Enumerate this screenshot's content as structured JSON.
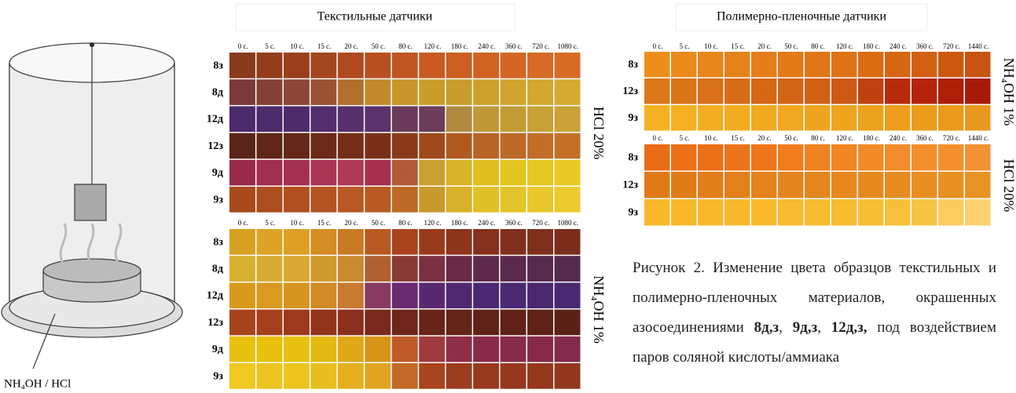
{
  "left_panel": {
    "label": "NH₄OH / HCl"
  },
  "textile": {
    "title": "Текстильные датчики",
    "panels": [
      {
        "side_label": "HCl 20%",
        "times": [
          "0 с.",
          "5 с.",
          "10 с.",
          "15 с.",
          "20 с.",
          "50 с.",
          "80 с.",
          "120 с.",
          "180 с.",
          "240 с.",
          "360 с.",
          "720 с.",
          "1080 с."
        ],
        "rows": [
          {
            "label": "8з",
            "colors": [
              "#8a3a1c",
              "#943d1c",
              "#9a3f1c",
              "#a4461e",
              "#b04a1e",
              "#b8501f",
              "#c05522",
              "#c85a22",
              "#cc5e20",
              "#d06222",
              "#d46624",
              "#d66a26",
              "#d86c26"
            ]
          },
          {
            "label": "8д",
            "colors": [
              "#7a3a3a",
              "#844036",
              "#8a4636",
              "#9a5234",
              "#b2702e",
              "#c08a2c",
              "#c8962a",
              "#cc9c2a",
              "#c89c2c",
              "#cca02c",
              "#d0a42e",
              "#d2a830",
              "#d4aa30"
            ]
          },
          {
            "label": "12д",
            "colors": [
              "#4a2a6a",
              "#4c2b6b",
              "#4e2c6c",
              "#522e6e",
              "#58306c",
              "#5c326a",
              "#6a3a5a",
              "#6a3e58",
              "#b08a40",
              "#c09838",
              "#c49c36",
              "#c8a038",
              "#caa23a"
            ]
          },
          {
            "label": "12з",
            "colors": [
              "#5a2418",
              "#602618",
              "#642818",
              "#6c2a18",
              "#742e18",
              "#7a3018",
              "#8a3a1a",
              "#a04a1c",
              "#b05a22",
              "#b86424",
              "#bc6a26",
              "#c06e28",
              "#c27028"
            ]
          },
          {
            "label": "9д",
            "colors": [
              "#9a2a4a",
              "#a02e4e",
              "#a43050",
              "#aa3654",
              "#b03a56",
              "#a8304e",
              "#b05a38",
              "#c8a030",
              "#d8b428",
              "#e0c020",
              "#e4c41e",
              "#e6c822",
              "#e8ca24"
            ]
          },
          {
            "label": "9з",
            "colors": [
              "#a84a1c",
              "#ac4e1e",
              "#b05020",
              "#b45422",
              "#b85824",
              "#b85a24",
              "#bc6a26",
              "#c89a2c",
              "#d8b02a",
              "#e0c028",
              "#e4c42a",
              "#e8c82c",
              "#eaca2e"
            ]
          }
        ]
      },
      {
        "side_label": "NH₄OH 1%",
        "times": [
          "0 с.",
          "5 с.",
          "10 с.",
          "15 с.",
          "20 с.",
          "50 с.",
          "80 с.",
          "120 с.",
          "180 с.",
          "240 с.",
          "360 с.",
          "720 с.",
          "1080 с."
        ],
        "rows": [
          {
            "label": "8з",
            "colors": [
              "#d8a020",
              "#dca424",
              "#dca024",
              "#d48c24",
              "#c87a24",
              "#b85a22",
              "#a8441e",
              "#9a3a1c",
              "#8c341c",
              "#84301c",
              "#80301c",
              "#7e301c",
              "#7c2e1c"
            ]
          },
          {
            "label": "8д",
            "colors": [
              "#d8b030",
              "#d8ac30",
              "#d8a830",
              "#d09a2e",
              "#c88a2c",
              "#b06030",
              "#8a3a36",
              "#7a3040",
              "#6a2a46",
              "#5e2a4a",
              "#5a2a4c",
              "#582a4c",
              "#562a4c"
            ]
          },
          {
            "label": "12д",
            "colors": [
              "#d89a1c",
              "#d89a20",
              "#d49620",
              "#d08a28",
              "#c87a30",
              "#8a3a60",
              "#6a2a70",
              "#5a2870",
              "#502872",
              "#4c2872",
              "#4a2872",
              "#4a2870",
              "#482870"
            ]
          },
          {
            "label": "12з",
            "colors": [
              "#a8441c",
              "#a4401c",
              "#9c3a1c",
              "#92341c",
              "#8a301c",
              "#7a2a1c",
              "#6e261c",
              "#682418",
              "#642418",
              "#602218",
              "#602218",
              "#5e2218",
              "#5c2218"
            ]
          },
          {
            "label": "9д",
            "colors": [
              "#e8c010",
              "#e8c010",
              "#e8c012",
              "#e4b814",
              "#e0a816",
              "#d89418",
              "#c05a2a",
              "#a03a40",
              "#902e48",
              "#8a2a4a",
              "#882a4a",
              "#862a4a",
              "#842a4a"
            ]
          },
          {
            "label": "9з",
            "colors": [
              "#f0c820",
              "#ecc420",
              "#ecc420",
              "#e8be20",
              "#e4b020",
              "#e0a422",
              "#c06a26",
              "#a8441e",
              "#9c3c1e",
              "#983a1e",
              "#96381e",
              "#94381e",
              "#92381e"
            ]
          }
        ]
      }
    ]
  },
  "film": {
    "title": "Полимерно-пленочные  датчики",
    "panels": [
      {
        "side_label": "NH₄OH 1%",
        "times": [
          "0 с.",
          "5 с.",
          "10 с.",
          "15 с.",
          "20 с.",
          "50 с.",
          "80 с.",
          "120 с.",
          "180 с.",
          "240 с.",
          "360 с.",
          "720 с.",
          "1440 с."
        ],
        "rows": [
          {
            "label": "8з",
            "colors": [
              "#ec8e1c",
              "#ea8a1c",
              "#e8861c",
              "#e6821a",
              "#e47e1a",
              "#e27a18",
              "#e07618",
              "#de7216",
              "#da6c14",
              "#d66612",
              "#d26012",
              "#cc5810",
              "#c85410"
            ]
          },
          {
            "label": "12з",
            "colors": [
              "#dc7818",
              "#da7418",
              "#d87018",
              "#d66c18",
              "#d46816",
              "#d26416",
              "#d06016",
              "#cc5a14",
              "#c04010",
              "#b82a0c",
              "#b4240a",
              "#ae1e08",
              "#a81a08"
            ]
          },
          {
            "label": "9з",
            "colors": [
              "#f4b222",
              "#f4b022",
              "#f2ae22",
              "#f2ac20",
              "#f0aa20",
              "#f0a820",
              "#eea620",
              "#eea41e",
              "#eca21e",
              "#ec9e1e",
              "#ea9c1c",
              "#ea9a1c",
              "#e8981c"
            ]
          }
        ]
      },
      {
        "side_label": "HCl 20%",
        "times": [
          "0 с.",
          "5 с.",
          "10 с.",
          "15 с.",
          "20 с.",
          "50 с.",
          "80 с.",
          "120 с.",
          "180 с.",
          "240 с.",
          "360 с.",
          "720 с.",
          "1440 с."
        ],
        "rows": [
          {
            "label": "8з",
            "colors": [
              "#ea6c16",
              "#ec7018",
              "#ec7018",
              "#ee741a",
              "#ee761a",
              "#f07c1e",
              "#f08220",
              "#f08624",
              "#f28a28",
              "#f28c2a",
              "#f28e2c",
              "#f2902e",
              "#f29230"
            ]
          },
          {
            "label": "12з",
            "colors": [
              "#e07a18",
              "#e07c18",
              "#e27e1a",
              "#e2801a",
              "#e4821c",
              "#e4841c",
              "#e4861e",
              "#e6881e",
              "#e68a20",
              "#e68c20",
              "#e88e22",
              "#e89022",
              "#e89224"
            ]
          },
          {
            "label": "9з",
            "colors": [
              "#f8b82a",
              "#f8b82a",
              "#f8b82a",
              "#f8b82c",
              "#f8ba2c",
              "#f8ba2e",
              "#f8bc30",
              "#f8bc32",
              "#f8be36",
              "#f8c03a",
              "#f8c444",
              "#fccc60",
              "#fcd070"
            ]
          }
        ]
      }
    ]
  },
  "caption": [
    {
      "text": "Рисунок 2. Изменение цвета образцов текстильных и полимерно-пленочных материалов, окрашенных азосоединениями "
    },
    {
      "text": "8д,з",
      "bold": true
    },
    {
      "text": ", "
    },
    {
      "text": "9д,з",
      "bold": true
    },
    {
      "text": ", "
    },
    {
      "text": "12д,з,",
      "bold": true
    },
    {
      "text": " под воздействием паров соляной кислоты/аммиака"
    }
  ]
}
